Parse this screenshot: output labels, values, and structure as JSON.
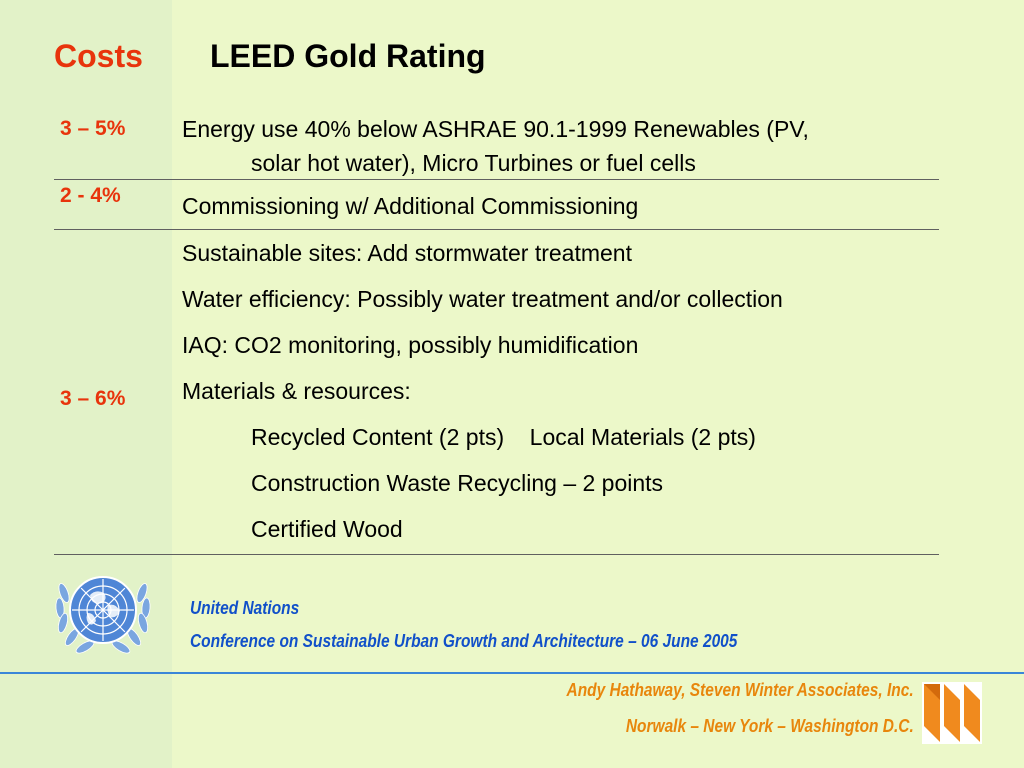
{
  "title": {
    "costs": "Costs",
    "main": "LEED Gold Rating"
  },
  "rows": [
    {
      "cost": "3 – 5%",
      "lines": [
        "Energy use 40% below ASHRAE 90.1-1999  Renewables (PV,",
        "solar hot water), Micro Turbines or fuel cells"
      ]
    },
    {
      "cost": "2 - 4%",
      "lines": [
        "Commissioning w/ Additional Commissioning"
      ]
    },
    {
      "cost": "3 – 6%",
      "lines": [
        "Sustainable sites: Add stormwater treatment",
        "Water efficiency: Possibly water treatment and/or collection",
        "IAQ: CO2 monitoring, possibly humidification",
        "Materials & resources:",
        "Recycled Content (2 pts)    Local Materials (2 pts)",
        "Construction Waste Recycling – 2 points",
        "Certified Wood"
      ]
    }
  ],
  "footer": {
    "organization": "United Nations",
    "conference": "Conference on Sustainable Urban Growth and Architecture – 06 June 2005",
    "author": "Andy Hathaway, Steven Winter Associates, Inc.",
    "locations": "Norwalk – New York – Washington D.C."
  },
  "logos": {
    "un_logo": "united-nations-emblem",
    "company_logo": "swa-logo"
  },
  "colors": {
    "accent_red": "#e8340c",
    "footer_blue": "#1150c9",
    "footer_orange": "#e8860c",
    "background": "#ecf8c9"
  }
}
